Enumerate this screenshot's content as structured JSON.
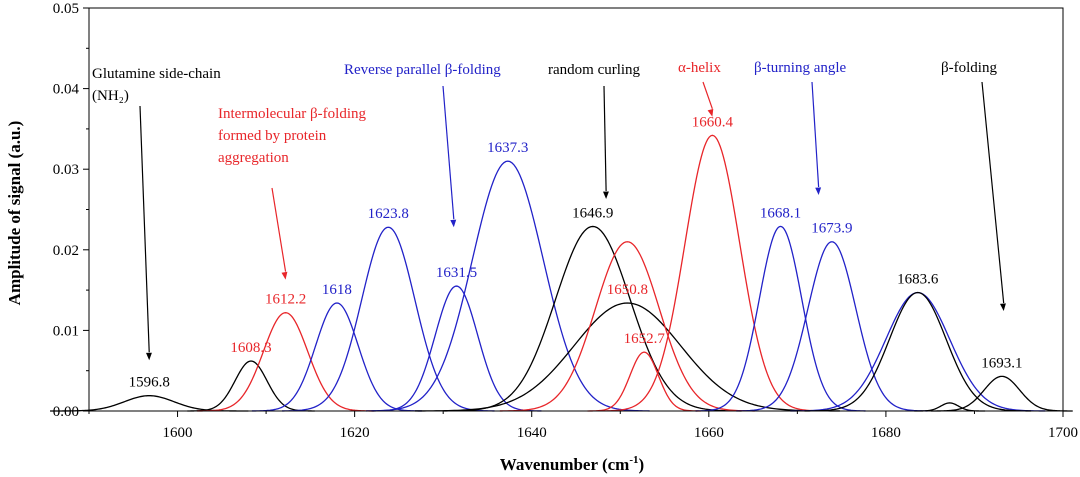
{
  "chart_data": {
    "type": "line",
    "title": "",
    "xlabel": "Wavenumber (cm",
    "xlabel_sup": "-1",
    "xlabel_suffix": ")",
    "ylabel": "Amplitude of signal (a.u.)",
    "xlim": [
      1590,
      1700
    ],
    "ylim": [
      0,
      0.05
    ],
    "xticks": [
      1600,
      1620,
      1640,
      1660,
      1680,
      1700
    ],
    "yticks": [
      0.0,
      0.01,
      0.02,
      0.03,
      0.04,
      0.05
    ],
    "ytick_labels": [
      "0.00",
      "0.01",
      "0.02",
      "0.03",
      "0.04",
      "0.05"
    ],
    "grid": false,
    "legend": "none",
    "colors": {
      "black": "#000000",
      "red": "#e8262a",
      "blue": "#2222c8"
    },
    "series": [
      {
        "center": 1596.8,
        "amplitude": 0.0019,
        "width": 2.8,
        "color": "black",
        "label": "1596.8"
      },
      {
        "center": 1608.3,
        "amplitude": 0.0062,
        "width": 1.8,
        "color": "black",
        "label": "1608.3",
        "label_color": "red"
      },
      {
        "center": 1612.2,
        "amplitude": 0.0122,
        "width": 2.5,
        "color": "red",
        "label": "1612.2"
      },
      {
        "center": 1618.0,
        "amplitude": 0.0134,
        "width": 2.4,
        "color": "blue",
        "label": "1618"
      },
      {
        "center": 1623.8,
        "amplitude": 0.0228,
        "width": 3.0,
        "color": "blue",
        "label": "1623.8"
      },
      {
        "center": 1631.5,
        "amplitude": 0.0155,
        "width": 2.4,
        "color": "blue",
        "label": "1631.5"
      },
      {
        "center": 1637.3,
        "amplitude": 0.031,
        "width": 4.0,
        "color": "blue",
        "label": "1637.3"
      },
      {
        "center": 1646.9,
        "amplitude": 0.0229,
        "width": 4.2,
        "color": "black",
        "label": "1646.9"
      },
      {
        "center": 1650.8,
        "amplitude": 0.0134,
        "width": 6.0,
        "color": "black",
        "label": "1650.8",
        "label_color": "red"
      },
      {
        "center": 1652.7,
        "amplitude": 0.0073,
        "width": 1.6,
        "color": "red",
        "label": "1652.7"
      },
      {
        "center": 1650.8,
        "amplitude": 0.021,
        "width": 3.6,
        "color": "red",
        "label": ""
      },
      {
        "center": 1660.4,
        "amplitude": 0.0342,
        "width": 3.1,
        "color": "red",
        "label": "1660.4"
      },
      {
        "center": 1668.1,
        "amplitude": 0.0229,
        "width": 2.4,
        "color": "blue",
        "label": "1668.1"
      },
      {
        "center": 1673.9,
        "amplitude": 0.021,
        "width": 2.7,
        "color": "blue",
        "label": "1673.9"
      },
      {
        "center": 1683.6,
        "amplitude": 0.0147,
        "width": 3.6,
        "color": "blue",
        "label": ""
      },
      {
        "center": 1683.6,
        "amplitude": 0.0147,
        "width": 3.2,
        "color": "black",
        "label": "1683.6"
      },
      {
        "center": 1693.1,
        "amplitude": 0.0043,
        "width": 2.0,
        "color": "black",
        "label": "1693.1"
      },
      {
        "center": 1687.2,
        "amplitude": 0.001,
        "width": 1.0,
        "color": "black",
        "label": ""
      }
    ],
    "annotations": [
      {
        "lines": [
          "Glutamine side-chain",
          "(NH₂)"
        ],
        "color": "black",
        "arrow_to": [
          1596.8,
          0.0063
        ]
      },
      {
        "lines": [
          "Intermolecular β-folding",
          "formed by protein",
          "aggregation"
        ],
        "color": "red",
        "arrow_to": [
          1612.2,
          0.0163
        ]
      },
      {
        "lines": [
          "Reverse parallel β-folding"
        ],
        "color": "blue",
        "arrow_to": [
          1631.2,
          0.0228
        ]
      },
      {
        "lines": [
          "random curling"
        ],
        "color": "black",
        "arrow_to": [
          1648.4,
          0.0263
        ]
      },
      {
        "lines": [
          "α-helix"
        ],
        "color": "red",
        "arrow_to": [
          1660.4,
          0.0365
        ]
      },
      {
        "lines": [
          "β-turning angle"
        ],
        "color": "blue",
        "arrow_to": [
          1672.4,
          0.0268
        ]
      },
      {
        "lines": [
          "β-folding"
        ],
        "color": "black",
        "arrow_to": [
          1693.3,
          0.0124
        ]
      }
    ]
  }
}
